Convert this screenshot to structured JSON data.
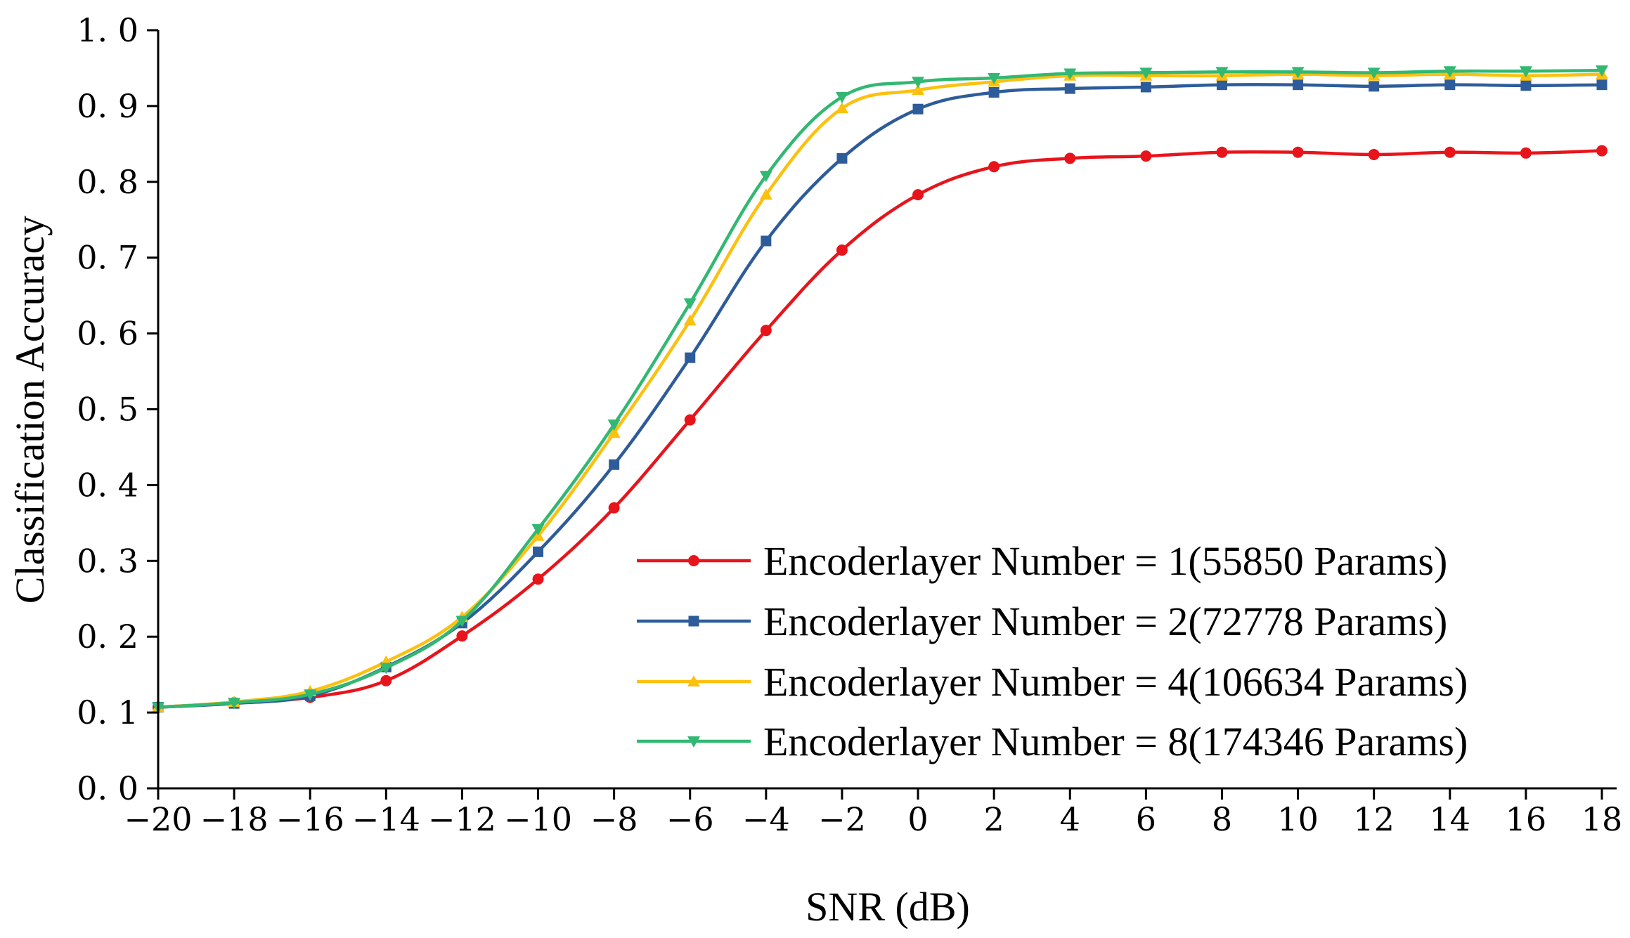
{
  "chart_data": {
    "type": "line",
    "title": "",
    "xlabel": "SNR (dB)",
    "ylabel": "Classification Accuracy",
    "x": [
      -20,
      -18,
      -16,
      -14,
      -12,
      -10,
      -8,
      -6,
      -4,
      -2,
      0,
      2,
      4,
      6,
      8,
      10,
      12,
      14,
      16,
      18
    ],
    "xlim": [
      -20,
      18
    ],
    "ylim": [
      0.0,
      1.0
    ],
    "xticks": [
      -20,
      -18,
      -16,
      -14,
      -12,
      -10,
      -8,
      -6,
      -4,
      -2,
      0,
      2,
      4,
      6,
      8,
      10,
      12,
      14,
      16,
      18
    ],
    "xtick_labels": [
      "−20",
      "−18",
      "−16",
      "−14",
      "−12",
      "−10",
      "−8",
      "−6",
      "−4",
      "−2",
      "0",
      "2",
      "4",
      "6",
      "8",
      "10",
      "12",
      "14",
      "16",
      "18"
    ],
    "yticks": [
      0.0,
      0.1,
      0.2,
      0.3,
      0.4,
      0.5,
      0.6,
      0.7,
      0.8,
      0.9,
      1.0
    ],
    "ytick_labels": [
      "0. 0",
      "0. 1",
      "0. 2",
      "0. 3",
      "0. 4",
      "0. 5",
      "0. 6",
      "0. 7",
      "0. 8",
      "0. 9",
      "1. 0"
    ],
    "grid": false,
    "legend_position": "bottom-right",
    "series": [
      {
        "name": "Encoderlayer Number = 1(55850 Params)",
        "color": "#e8141b",
        "marker": "circle",
        "values": [
          0.107,
          0.113,
          0.12,
          0.142,
          0.201,
          0.276,
          0.37,
          0.486,
          0.604,
          0.71,
          0.783,
          0.82,
          0.831,
          0.834,
          0.839,
          0.839,
          0.836,
          0.839,
          0.838,
          0.841
        ]
      },
      {
        "name": "Encoderlayer Number = 2(72778 Params)",
        "color": "#2e5c9a",
        "marker": "square",
        "values": [
          0.107,
          0.112,
          0.122,
          0.16,
          0.218,
          0.312,
          0.427,
          0.568,
          0.722,
          0.831,
          0.896,
          0.918,
          0.923,
          0.925,
          0.928,
          0.928,
          0.926,
          0.928,
          0.927,
          0.928
        ]
      },
      {
        "name": "Encoderlayer Number = 4(106634 Params)",
        "color": "#fcc00e",
        "marker": "triangle-up",
        "values": [
          0.107,
          0.114,
          0.128,
          0.167,
          0.226,
          0.333,
          0.469,
          0.617,
          0.783,
          0.897,
          0.921,
          0.932,
          0.94,
          0.94,
          0.94,
          0.942,
          0.94,
          0.942,
          0.94,
          0.942
        ]
      },
      {
        "name": "Encoderlayer Number = 8(174346 Params)",
        "color": "#32b872",
        "marker": "triangle-down",
        "values": [
          0.107,
          0.113,
          0.124,
          0.159,
          0.221,
          0.342,
          0.48,
          0.64,
          0.808,
          0.912,
          0.932,
          0.937,
          0.943,
          0.944,
          0.945,
          0.945,
          0.944,
          0.946,
          0.946,
          0.947
        ]
      }
    ]
  }
}
